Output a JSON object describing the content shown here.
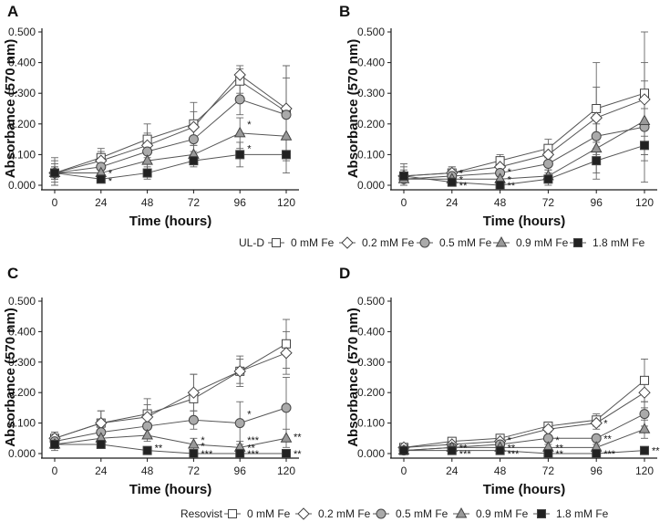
{
  "colors": {
    "axis": "#1a1a1a",
    "line": "#555555",
    "errorbar": "#666666",
    "fill_0": "#ffffff",
    "fill_0_2": "#ffffff",
    "fill_0_5": "#aaaaaa",
    "fill_0_9": "#999999",
    "fill_1_8": "#222222"
  },
  "legends": [
    {
      "title": "UL-D",
      "entries": [
        {
          "label": "0 mM Fe",
          "marker": "open-square-icon"
        },
        {
          "label": "0.2 mM Fe",
          "marker": "open-diamond-icon"
        },
        {
          "label": "0.5 mM Fe",
          "marker": "gray-circle-icon"
        },
        {
          "label": "0.9 mM Fe",
          "marker": "gray-triangle-icon"
        },
        {
          "label": "1.8 mM Fe",
          "marker": "black-square-icon"
        }
      ]
    },
    {
      "title": "Resovist",
      "entries": [
        {
          "label": "0 mM Fe",
          "marker": "open-square-icon"
        },
        {
          "label": "0.2 mM Fe",
          "marker": "open-diamond-icon"
        },
        {
          "label": "0.5 mM Fe",
          "marker": "gray-circle-icon"
        },
        {
          "label": "0.9 mM Fe",
          "marker": "gray-triangle-icon"
        },
        {
          "label": "1.8 mM Fe",
          "marker": "black-square-icon"
        }
      ]
    }
  ],
  "chart_data": [
    {
      "panel": "A",
      "type": "line",
      "xlabel": "Time (hours)",
      "ylabel": "Absorbance (570 nm)",
      "x": [
        0,
        24,
        48,
        72,
        96,
        120
      ],
      "xticks": [
        "0",
        "24",
        "48",
        "72",
        "96",
        "120"
      ],
      "yticks": [
        "0.000",
        "0.100",
        "0.200",
        "0.300",
        "0.400",
        "0.500"
      ],
      "ylim": [
        0,
        0.5
      ],
      "series": [
        {
          "name": "0 mM Fe",
          "values": [
            0.04,
            0.09,
            0.15,
            0.2,
            0.34,
            0.24
          ],
          "errors": [
            0.05,
            0.03,
            0.05,
            0.07,
            0.04,
            0.15
          ]
        },
        {
          "name": "0.2 mM Fe",
          "values": [
            0.04,
            0.08,
            0.13,
            0.19,
            0.36,
            0.25
          ],
          "errors": [
            0.04,
            0.03,
            0.04,
            0.05,
            0.03,
            0.14
          ]
        },
        {
          "name": "0.5 mM Fe",
          "values": [
            0.04,
            0.06,
            0.11,
            0.15,
            0.28,
            0.23
          ],
          "errors": [
            0.03,
            0.03,
            0.04,
            0.04,
            0.05,
            0.12
          ]
        },
        {
          "name": "0.9 mM Fe",
          "values": [
            0.04,
            0.04,
            0.08,
            0.1,
            0.17,
            0.16
          ],
          "errors": [
            0.02,
            0.02,
            0.03,
            0.03,
            0.05,
            0.08
          ]
        },
        {
          "name": "1.8 mM Fe",
          "values": [
            0.04,
            0.02,
            0.04,
            0.08,
            0.1,
            0.1
          ],
          "errors": [
            0.02,
            0.01,
            0.02,
            0.02,
            0.04,
            0.06
          ]
        }
      ],
      "annotations": [
        {
          "x": 24,
          "y": 0.04,
          "text": "*"
        },
        {
          "x": 24,
          "y": 0.015,
          "text": "*"
        },
        {
          "x": 96,
          "y": 0.2,
          "text": "*"
        },
        {
          "x": 96,
          "y": 0.12,
          "text": "*"
        }
      ]
    },
    {
      "panel": "B",
      "type": "line",
      "xlabel": "Time (hours)",
      "ylabel": "Absorbance (570 nm)",
      "x": [
        0,
        24,
        48,
        72,
        96,
        120
      ],
      "xticks": [
        "0",
        "24",
        "48",
        "72",
        "96",
        "120"
      ],
      "yticks": [
        "0.000",
        "0.100",
        "0.200",
        "0.300",
        "0.400",
        "0.500"
      ],
      "ylim": [
        0,
        0.5
      ],
      "series": [
        {
          "name": "0 mM Fe",
          "values": [
            0.03,
            0.04,
            0.08,
            0.12,
            0.25,
            0.3
          ],
          "errors": [
            0.04,
            0.02,
            0.02,
            0.03,
            0.15,
            0.2
          ]
        },
        {
          "name": "0.2 mM Fe",
          "values": [
            0.03,
            0.04,
            0.06,
            0.1,
            0.22,
            0.28
          ],
          "errors": [
            0.03,
            0.02,
            0.02,
            0.03,
            0.1,
            0.12
          ]
        },
        {
          "name": "0.5 mM Fe",
          "values": [
            0.02,
            0.03,
            0.04,
            0.07,
            0.16,
            0.19
          ],
          "errors": [
            0.02,
            0.01,
            0.02,
            0.02,
            0.07,
            0.09
          ]
        },
        {
          "name": "0.9 mM Fe",
          "values": [
            0.02,
            0.02,
            0.02,
            0.03,
            0.12,
            0.21
          ],
          "errors": [
            0.02,
            0.01,
            0.01,
            0.02,
            0.08,
            0.13
          ]
        },
        {
          "name": "1.8 mM Fe",
          "values": [
            0.03,
            0.01,
            0.0,
            0.02,
            0.08,
            0.13
          ],
          "errors": [
            0.02,
            0.01,
            0.01,
            0.02,
            0.06,
            0.12
          ]
        }
      ],
      "annotations": [
        {
          "x": 24,
          "y": 0.04,
          "text": "*"
        },
        {
          "x": 24,
          "y": 0.02,
          "text": "*"
        },
        {
          "x": 24,
          "y": 0.0,
          "text": "**"
        },
        {
          "x": 48,
          "y": 0.045,
          "text": "*"
        },
        {
          "x": 48,
          "y": 0.02,
          "text": "*"
        },
        {
          "x": 48,
          "y": 0.0,
          "text": "**"
        }
      ]
    },
    {
      "panel": "C",
      "type": "line",
      "xlabel": "Time (hours)",
      "ylabel": "Absorbance (570 nm)",
      "x": [
        0,
        24,
        48,
        72,
        96,
        120
      ],
      "xticks": [
        "0",
        "24",
        "48",
        "72",
        "96",
        "120"
      ],
      "yticks": [
        "0.000",
        "0.100",
        "0.200",
        "0.300",
        "0.400",
        "0.500"
      ],
      "ylim": [
        0,
        0.5
      ],
      "series": [
        {
          "name": "0 mM Fe",
          "values": [
            0.05,
            0.1,
            0.13,
            0.18,
            0.27,
            0.36
          ],
          "errors": [
            0.02,
            0.04,
            0.05,
            0.08,
            0.05,
            0.08
          ]
        },
        {
          "name": "0.2 mM Fe",
          "values": [
            0.05,
            0.1,
            0.12,
            0.2,
            0.27,
            0.33
          ],
          "errors": [
            0.02,
            0.04,
            0.04,
            0.06,
            0.04,
            0.07
          ]
        },
        {
          "name": "0.5 mM Fe",
          "values": [
            0.04,
            0.07,
            0.09,
            0.11,
            0.1,
            0.15
          ],
          "errors": [
            0.02,
            0.03,
            0.03,
            0.03,
            0.07,
            0.1
          ]
        },
        {
          "name": "0.9 mM Fe",
          "values": [
            0.03,
            0.05,
            0.06,
            0.03,
            0.02,
            0.05
          ],
          "errors": [
            0.02,
            0.02,
            0.02,
            0.02,
            0.02,
            0.03
          ]
        },
        {
          "name": "1.8 mM Fe",
          "values": [
            0.03,
            0.03,
            0.01,
            0.0,
            0.0,
            0.0
          ],
          "errors": [
            0.01,
            0.01,
            0.01,
            0.01,
            0.01,
            0.01
          ]
        }
      ],
      "annotations": [
        {
          "x": 48,
          "y": 0.02,
          "text": "**"
        },
        {
          "x": 72,
          "y": 0.045,
          "text": "*"
        },
        {
          "x": 72,
          "y": 0.025,
          "text": "*"
        },
        {
          "x": 72,
          "y": 0.0,
          "text": "***"
        },
        {
          "x": 96,
          "y": 0.13,
          "text": "*"
        },
        {
          "x": 96,
          "y": 0.045,
          "text": "***"
        },
        {
          "x": 96,
          "y": 0.02,
          "text": "**"
        },
        {
          "x": 96,
          "y": 0.0,
          "text": "***"
        },
        {
          "x": 120,
          "y": 0.055,
          "text": "**"
        },
        {
          "x": 120,
          "y": 0.0,
          "text": "**"
        }
      ]
    },
    {
      "panel": "D",
      "type": "line",
      "xlabel": "Time (hours)",
      "ylabel": "Absorbance (570 nm)",
      "x": [
        0,
        24,
        48,
        72,
        96,
        120
      ],
      "xticks": [
        "0",
        "24",
        "48",
        "72",
        "96",
        "120"
      ],
      "yticks": [
        "0.000",
        "0.100",
        "0.200",
        "0.300",
        "0.400",
        "0.500"
      ],
      "ylim": [
        0,
        0.5
      ],
      "series": [
        {
          "name": "0 mM Fe",
          "values": [
            0.02,
            0.04,
            0.05,
            0.09,
            0.11,
            0.24
          ],
          "errors": [
            0.01,
            0.01,
            0.01,
            0.01,
            0.02,
            0.07
          ]
        },
        {
          "name": "0.2 mM Fe",
          "values": [
            0.02,
            0.03,
            0.04,
            0.08,
            0.1,
            0.2
          ],
          "errors": [
            0.01,
            0.01,
            0.01,
            0.01,
            0.02,
            0.05
          ]
        },
        {
          "name": "0.5 mM Fe",
          "values": [
            0.01,
            0.02,
            0.03,
            0.05,
            0.05,
            0.13
          ],
          "errors": [
            0.01,
            0.01,
            0.01,
            0.01,
            0.01,
            0.04
          ]
        },
        {
          "name": "0.9 mM Fe",
          "values": [
            0.01,
            0.02,
            0.02,
            0.02,
            0.02,
            0.08
          ],
          "errors": [
            0.01,
            0.01,
            0.01,
            0.01,
            0.01,
            0.03
          ]
        },
        {
          "name": "1.8 mM Fe",
          "values": [
            0.01,
            0.01,
            0.01,
            0.0,
            0.0,
            0.01
          ],
          "errors": [
            0.01,
            0.01,
            0.01,
            0.01,
            0.01,
            0.01
          ]
        }
      ],
      "annotations": [
        {
          "x": 24,
          "y": 0.02,
          "text": "**"
        },
        {
          "x": 24,
          "y": 0.0,
          "text": "***"
        },
        {
          "x": 48,
          "y": 0.045,
          "text": "*"
        },
        {
          "x": 48,
          "y": 0.02,
          "text": "**"
        },
        {
          "x": 48,
          "y": 0.0,
          "text": "***"
        },
        {
          "x": 72,
          "y": 0.045,
          "text": "*"
        },
        {
          "x": 72,
          "y": 0.02,
          "text": "**"
        },
        {
          "x": 72,
          "y": 0.0,
          "text": "**"
        },
        {
          "x": 96,
          "y": 0.1,
          "text": "*"
        },
        {
          "x": 96,
          "y": 0.05,
          "text": "**"
        },
        {
          "x": 96,
          "y": 0.0,
          "text": "***"
        },
        {
          "x": 120,
          "y": 0.01,
          "text": "**"
        }
      ]
    }
  ]
}
